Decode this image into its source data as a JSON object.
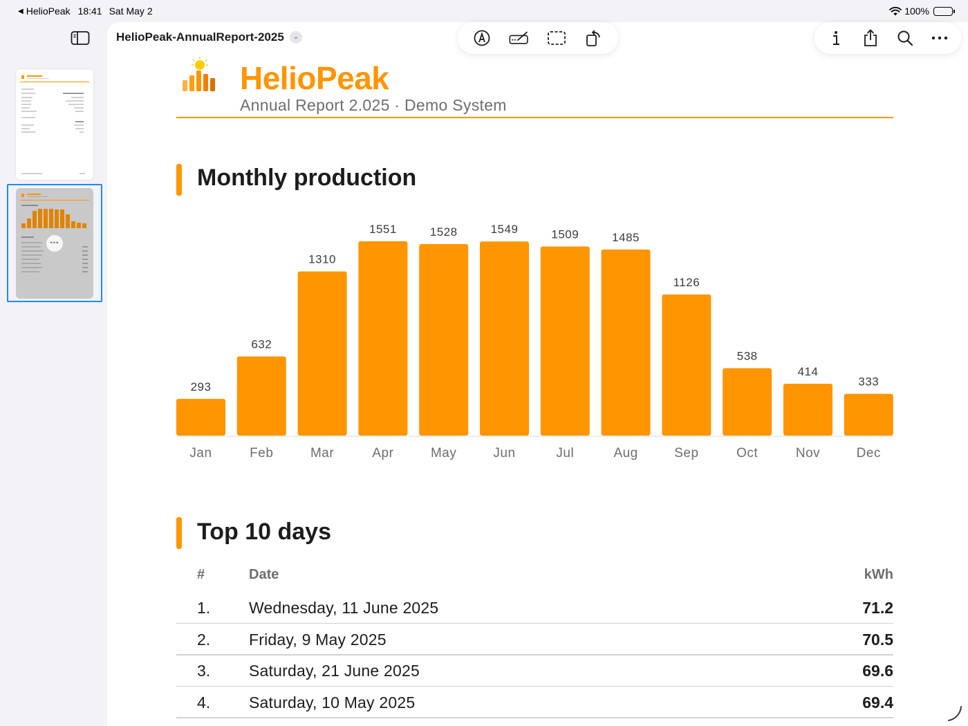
{
  "status_bar": {
    "back_app": "HelioPeak",
    "time": "18:41",
    "date": "Sat May 2",
    "battery": "100%"
  },
  "toolbar": {
    "document_title": "HelioPeak-AnnualReport-2025",
    "tools": [
      "markup-pen-icon",
      "highlighter-icon",
      "select-icon",
      "rotate-icon"
    ],
    "actions": [
      "info-icon",
      "share-icon",
      "search-icon",
      "more-icon"
    ]
  },
  "sidebar": {
    "thumbnails": [
      {
        "page": 1,
        "selected": false
      },
      {
        "page": 2,
        "selected": true
      }
    ]
  },
  "header": {
    "brand": "HelioPeak",
    "subtitle": "Annual Report 2.025 · Demo System"
  },
  "sections": {
    "monthly": "Monthly production",
    "top_days": "Top 10 days"
  },
  "chart_data": {
    "type": "bar",
    "categories": [
      "Jan",
      "Feb",
      "Mar",
      "Apr",
      "May",
      "Jun",
      "Jul",
      "Aug",
      "Sep",
      "Oct",
      "Nov",
      "Dec"
    ],
    "values": [
      293,
      632,
      1310,
      1551,
      1528,
      1549,
      1509,
      1485,
      1126,
      538,
      414,
      333
    ],
    "ylim": [
      0,
      1600
    ],
    "color": "#ff9500",
    "grid": false
  },
  "table": {
    "headers": {
      "index": "#",
      "date": "Date",
      "value": "kWh"
    },
    "rows": [
      {
        "index": "1.",
        "date": "Wednesday, 11 June 2025",
        "kwh": "71.2"
      },
      {
        "index": "2.",
        "date": "Friday, 9 May 2025",
        "kwh": "70.5"
      },
      {
        "index": "3.",
        "date": "Saturday, 21 June 2025",
        "kwh": "69.6"
      },
      {
        "index": "4.",
        "date": "Saturday, 10 May 2025",
        "kwh": "69.4"
      }
    ]
  },
  "colors": {
    "accent": "#ff9500",
    "selection": "#1f8af6"
  }
}
